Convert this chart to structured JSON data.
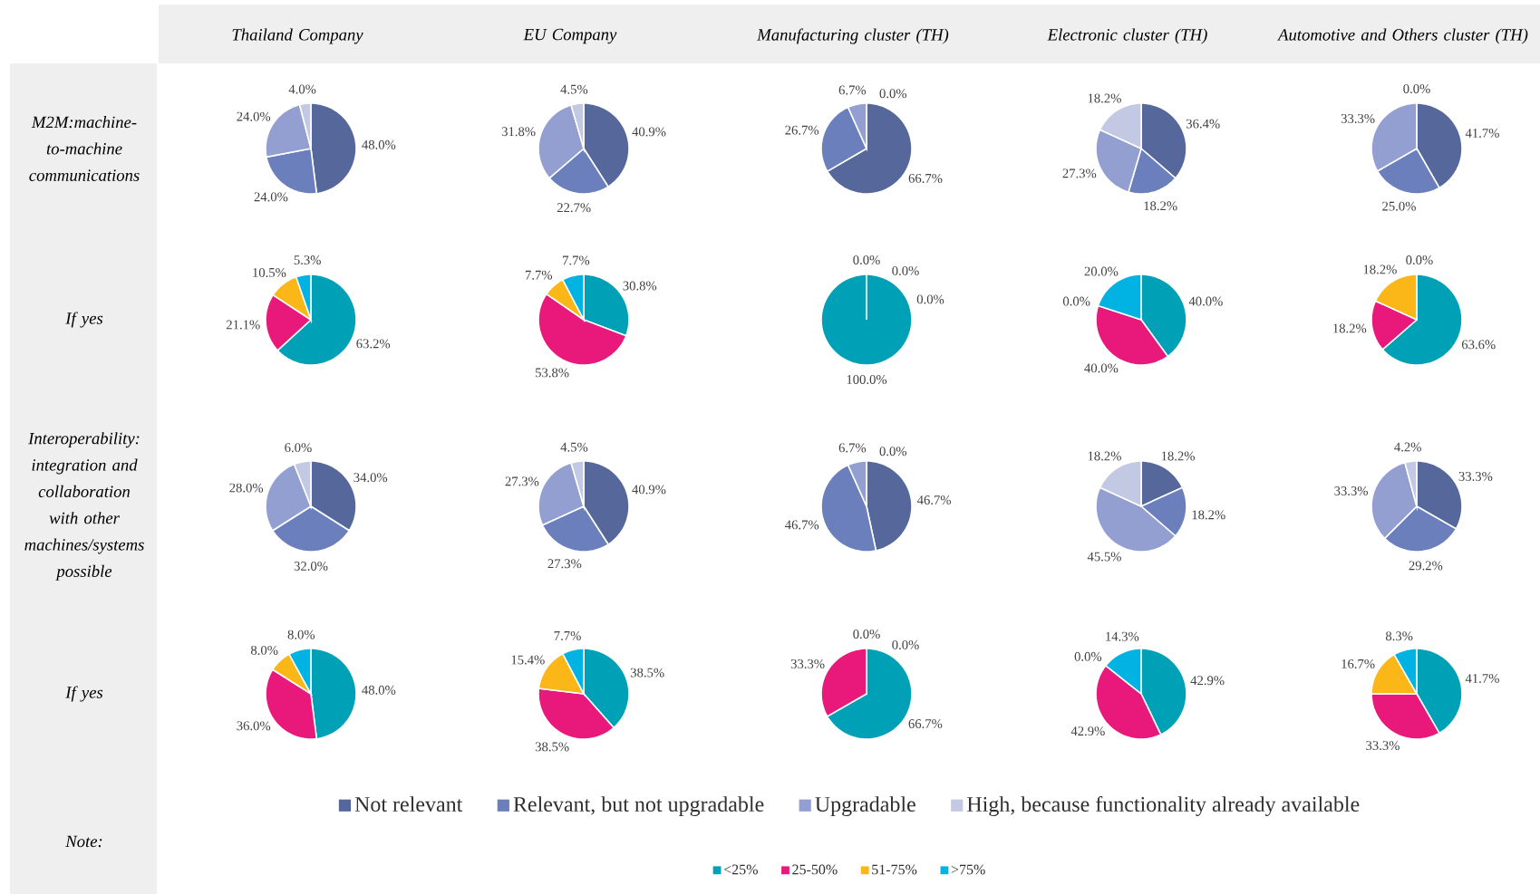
{
  "chart_data": [
    {
      "type": "other",
      "annotations": [
        "Thailand Company",
        "EU Company",
        "Manufacturing cluster (TH)",
        "Electronic cluster (TH)",
        "Automotive and Others cluster (TH)",
        "M2M:machine-to-machine communications",
        "If yes",
        "Interoperability: integration and collaboration with other machines/systems possible",
        "If yes",
        "Note:"
      ]
    },
    {
      "type": "pie",
      "categories": [
        "Not relevant",
        "Relevant, but not upgradable",
        "Upgradable",
        "High, because functionality already available"
      ],
      "values": [
        48.0,
        24.0,
        24.0,
        4.0
      ],
      "colors": [
        "#56679b",
        "#6b7fbd",
        "#949fd1",
        "#c3c8e3"
      ],
      "value_labels": [
        "48.0%",
        "24.0%",
        "24.0%",
        "4.0%"
      ],
      "legend": "bottom"
    },
    {
      "type": "pie",
      "values": [
        40.9,
        22.7,
        31.8,
        4.5
      ],
      "colors": [
        "#56679b",
        "#6b7fbd",
        "#949fd1",
        "#c3c8e3"
      ],
      "value_labels": [
        "40.9%",
        "22.7%",
        "31.8%",
        "4.5%"
      ]
    },
    {
      "type": "pie",
      "values": [
        66.7,
        26.7,
        6.7,
        0.0
      ],
      "colors": [
        "#56679b",
        "#6b7fbd",
        "#949fd1",
        "#c3c8e3"
      ],
      "value_labels": [
        "66.7%",
        "26.7%",
        "6.7%",
        "0.0%"
      ]
    },
    {
      "type": "pie",
      "values": [
        36.4,
        18.2,
        27.3,
        18.2
      ],
      "colors": [
        "#56679b",
        "#6b7fbd",
        "#949fd1",
        "#c3c8e3"
      ],
      "value_labels": [
        "36.4%",
        "18.2%",
        "27.3%",
        "18.2%"
      ]
    },
    {
      "type": "pie",
      "values": [
        41.7,
        25.0,
        33.3,
        0.0
      ],
      "colors": [
        "#56679b",
        "#6b7fbd",
        "#949fd1",
        "#c3c8e3"
      ],
      "value_labels": [
        "41.7%",
        "25.0%",
        "33.3%",
        "0.0%"
      ]
    },
    {
      "type": "pie",
      "categories": [
        "<25%",
        "25-50%",
        "51-75%",
        ">75%"
      ],
      "values": [
        63.2,
        21.1,
        10.5,
        5.3
      ],
      "colors": [
        "#00a0b6",
        "#e8197b",
        "#fbb718",
        "#00b3e3"
      ],
      "value_labels": [
        "63.2%",
        "21.1%",
        "10.5%",
        "5.3%"
      ],
      "legend": "bottom"
    },
    {
      "type": "pie",
      "values": [
        30.8,
        53.8,
        7.7,
        7.7
      ],
      "colors": [
        "#00a0b6",
        "#e8197b",
        "#fbb718",
        "#00b3e3"
      ],
      "value_labels": [
        "30.8%",
        "53.8%",
        "7.7%",
        "7.7%"
      ]
    },
    {
      "type": "pie",
      "values": [
        100.0,
        0.0,
        0.0,
        0.0
      ],
      "colors": [
        "#00a0b6",
        "#e8197b",
        "#fbb718",
        "#00b3e3"
      ],
      "value_labels": [
        "100.0%",
        "0.0%",
        "0.0%",
        "0.0%"
      ]
    },
    {
      "type": "pie",
      "values": [
        40.0,
        40.0,
        0.0,
        20.0
      ],
      "colors": [
        "#00a0b6",
        "#e8197b",
        "#fbb718",
        "#00b3e3"
      ],
      "value_labels": [
        "40.0%",
        "40.0%",
        "0.0%",
        "20.0%"
      ]
    },
    {
      "type": "pie",
      "values": [
        63.6,
        18.2,
        18.2,
        0.0
      ],
      "colors": [
        "#00a0b6",
        "#e8197b",
        "#fbb718",
        "#00b3e3"
      ],
      "value_labels": [
        "63.6%",
        "18.2%",
        "18.2%",
        "0.0%"
      ]
    },
    {
      "type": "pie",
      "values": [
        34.0,
        32.0,
        28.0,
        6.0
      ],
      "colors": [
        "#56679b",
        "#6b7fbd",
        "#949fd1",
        "#c3c8e3"
      ],
      "value_labels": [
        "34.0%",
        "32.0%",
        "28.0%",
        "6.0%"
      ]
    },
    {
      "type": "pie",
      "values": [
        40.9,
        27.3,
        27.3,
        4.5
      ],
      "colors": [
        "#56679b",
        "#6b7fbd",
        "#949fd1",
        "#c3c8e3"
      ],
      "value_labels": [
        "40.9%",
        "27.3%",
        "27.3%",
        "4.5%"
      ]
    },
    {
      "type": "pie",
      "values": [
        46.7,
        46.7,
        6.7,
        0.0
      ],
      "colors": [
        "#56679b",
        "#6b7fbd",
        "#949fd1",
        "#c3c8e3"
      ],
      "value_labels": [
        "46.7%",
        "46.7%",
        "6.7%",
        "0.0%"
      ]
    },
    {
      "type": "pie",
      "values": [
        18.2,
        18.2,
        45.5,
        18.2
      ],
      "colors": [
        "#56679b",
        "#6b7fbd",
        "#949fd1",
        "#c3c8e3"
      ],
      "value_labels": [
        "18.2%",
        "18.2%",
        "45.5%",
        "18.2%"
      ]
    },
    {
      "type": "pie",
      "values": [
        33.3,
        29.2,
        33.3,
        4.2
      ],
      "colors": [
        "#56679b",
        "#6b7fbd",
        "#949fd1",
        "#c3c8e3"
      ],
      "value_labels": [
        "33.3%",
        "29.2%",
        "33.3%",
        "4.2%"
      ]
    },
    {
      "type": "pie",
      "values": [
        48.0,
        36.0,
        8.0,
        8.0
      ],
      "colors": [
        "#00a0b6",
        "#e8197b",
        "#fbb718",
        "#00b3e3"
      ],
      "value_labels": [
        "48.0%",
        "36.0%",
        "8.0%",
        "8.0%"
      ]
    },
    {
      "type": "pie",
      "values": [
        38.5,
        38.5,
        15.4,
        7.7
      ],
      "colors": [
        "#00a0b6",
        "#e8197b",
        "#fbb718",
        "#00b3e3"
      ],
      "value_labels": [
        "38.5%",
        "38.5%",
        "15.4%",
        "7.7%"
      ]
    },
    {
      "type": "pie",
      "values": [
        66.7,
        33.3,
        0.0,
        0.0
      ],
      "colors": [
        "#00a0b6",
        "#e8197b",
        "#fbb718",
        "#00b3e3"
      ],
      "value_labels": [
        "66.7%",
        "33.3%",
        "0.0%",
        "0.0%"
      ]
    },
    {
      "type": "pie",
      "values": [
        42.9,
        42.9,
        0.0,
        14.3
      ],
      "colors": [
        "#00a0b6",
        "#e8197b",
        "#fbb718",
        "#00b3e3"
      ],
      "value_labels": [
        "42.9%",
        "42.9%",
        "0.0%",
        "14.3%"
      ]
    },
    {
      "type": "pie",
      "values": [
        41.7,
        33.3,
        16.7,
        8.3
      ],
      "colors": [
        "#00a0b6",
        "#e8197b",
        "#fbb718",
        "#00b3e3"
      ],
      "value_labels": [
        "41.7%",
        "33.3%",
        "16.7%",
        "8.3%"
      ]
    }
  ]
}
